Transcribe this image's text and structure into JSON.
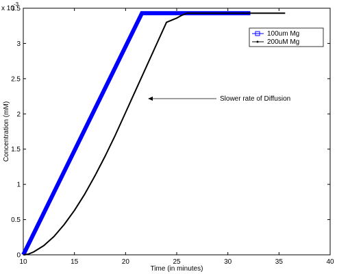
{
  "chart_data": {
    "type": "line",
    "xlabel": "Time (in minutes)",
    "ylabel": "Concentration (mM)",
    "xlim": [
      10,
      40
    ],
    "ylim": [
      0,
      0.0035
    ],
    "y_scale_note": "x 10",
    "y_scale_exponent": "-3",
    "x_ticks": [
      10,
      15,
      20,
      25,
      30,
      35,
      40
    ],
    "x_tick_labels": [
      "10",
      "15",
      "20",
      "25",
      "30",
      "35",
      "40"
    ],
    "y_ticks": [
      0,
      0.0005,
      0.001,
      0.0015,
      0.002,
      0.0025,
      0.003,
      0.0035
    ],
    "y_tick_labels": [
      "0",
      "0.5",
      "1",
      "1.5",
      "2",
      "2.5",
      "3",
      "3.5"
    ],
    "legend_position": "top-right",
    "series": [
      {
        "name": "100um Mg",
        "color": "#0000ff",
        "marker": "square",
        "x": [
          10,
          21.6,
          32.2
        ],
        "y": [
          0,
          0.00343,
          0.00343
        ]
      },
      {
        "name": "200uM Mg",
        "color": "#000000",
        "marker": "dot",
        "x": [
          10,
          10.5,
          11,
          12,
          13,
          14,
          15,
          16,
          17,
          18,
          19,
          20,
          21,
          22,
          23,
          24,
          25,
          25.5,
          26,
          27,
          30,
          33,
          35.6
        ],
        "y": [
          0,
          1e-05,
          4e-05,
          0.00013,
          0.00026,
          0.00043,
          0.00063,
          0.00086,
          0.00112,
          0.0014,
          0.0017,
          0.00202,
          0.00234,
          0.00266,
          0.00298,
          0.0033,
          0.00336,
          0.0034,
          0.00343,
          0.00343,
          0.00343,
          0.00343,
          0.00343
        ]
      }
    ],
    "annotations": [
      {
        "text": "Slower rate of Diffusion",
        "arrow_to": [
          21.6,
          0.00229
        ]
      }
    ]
  }
}
